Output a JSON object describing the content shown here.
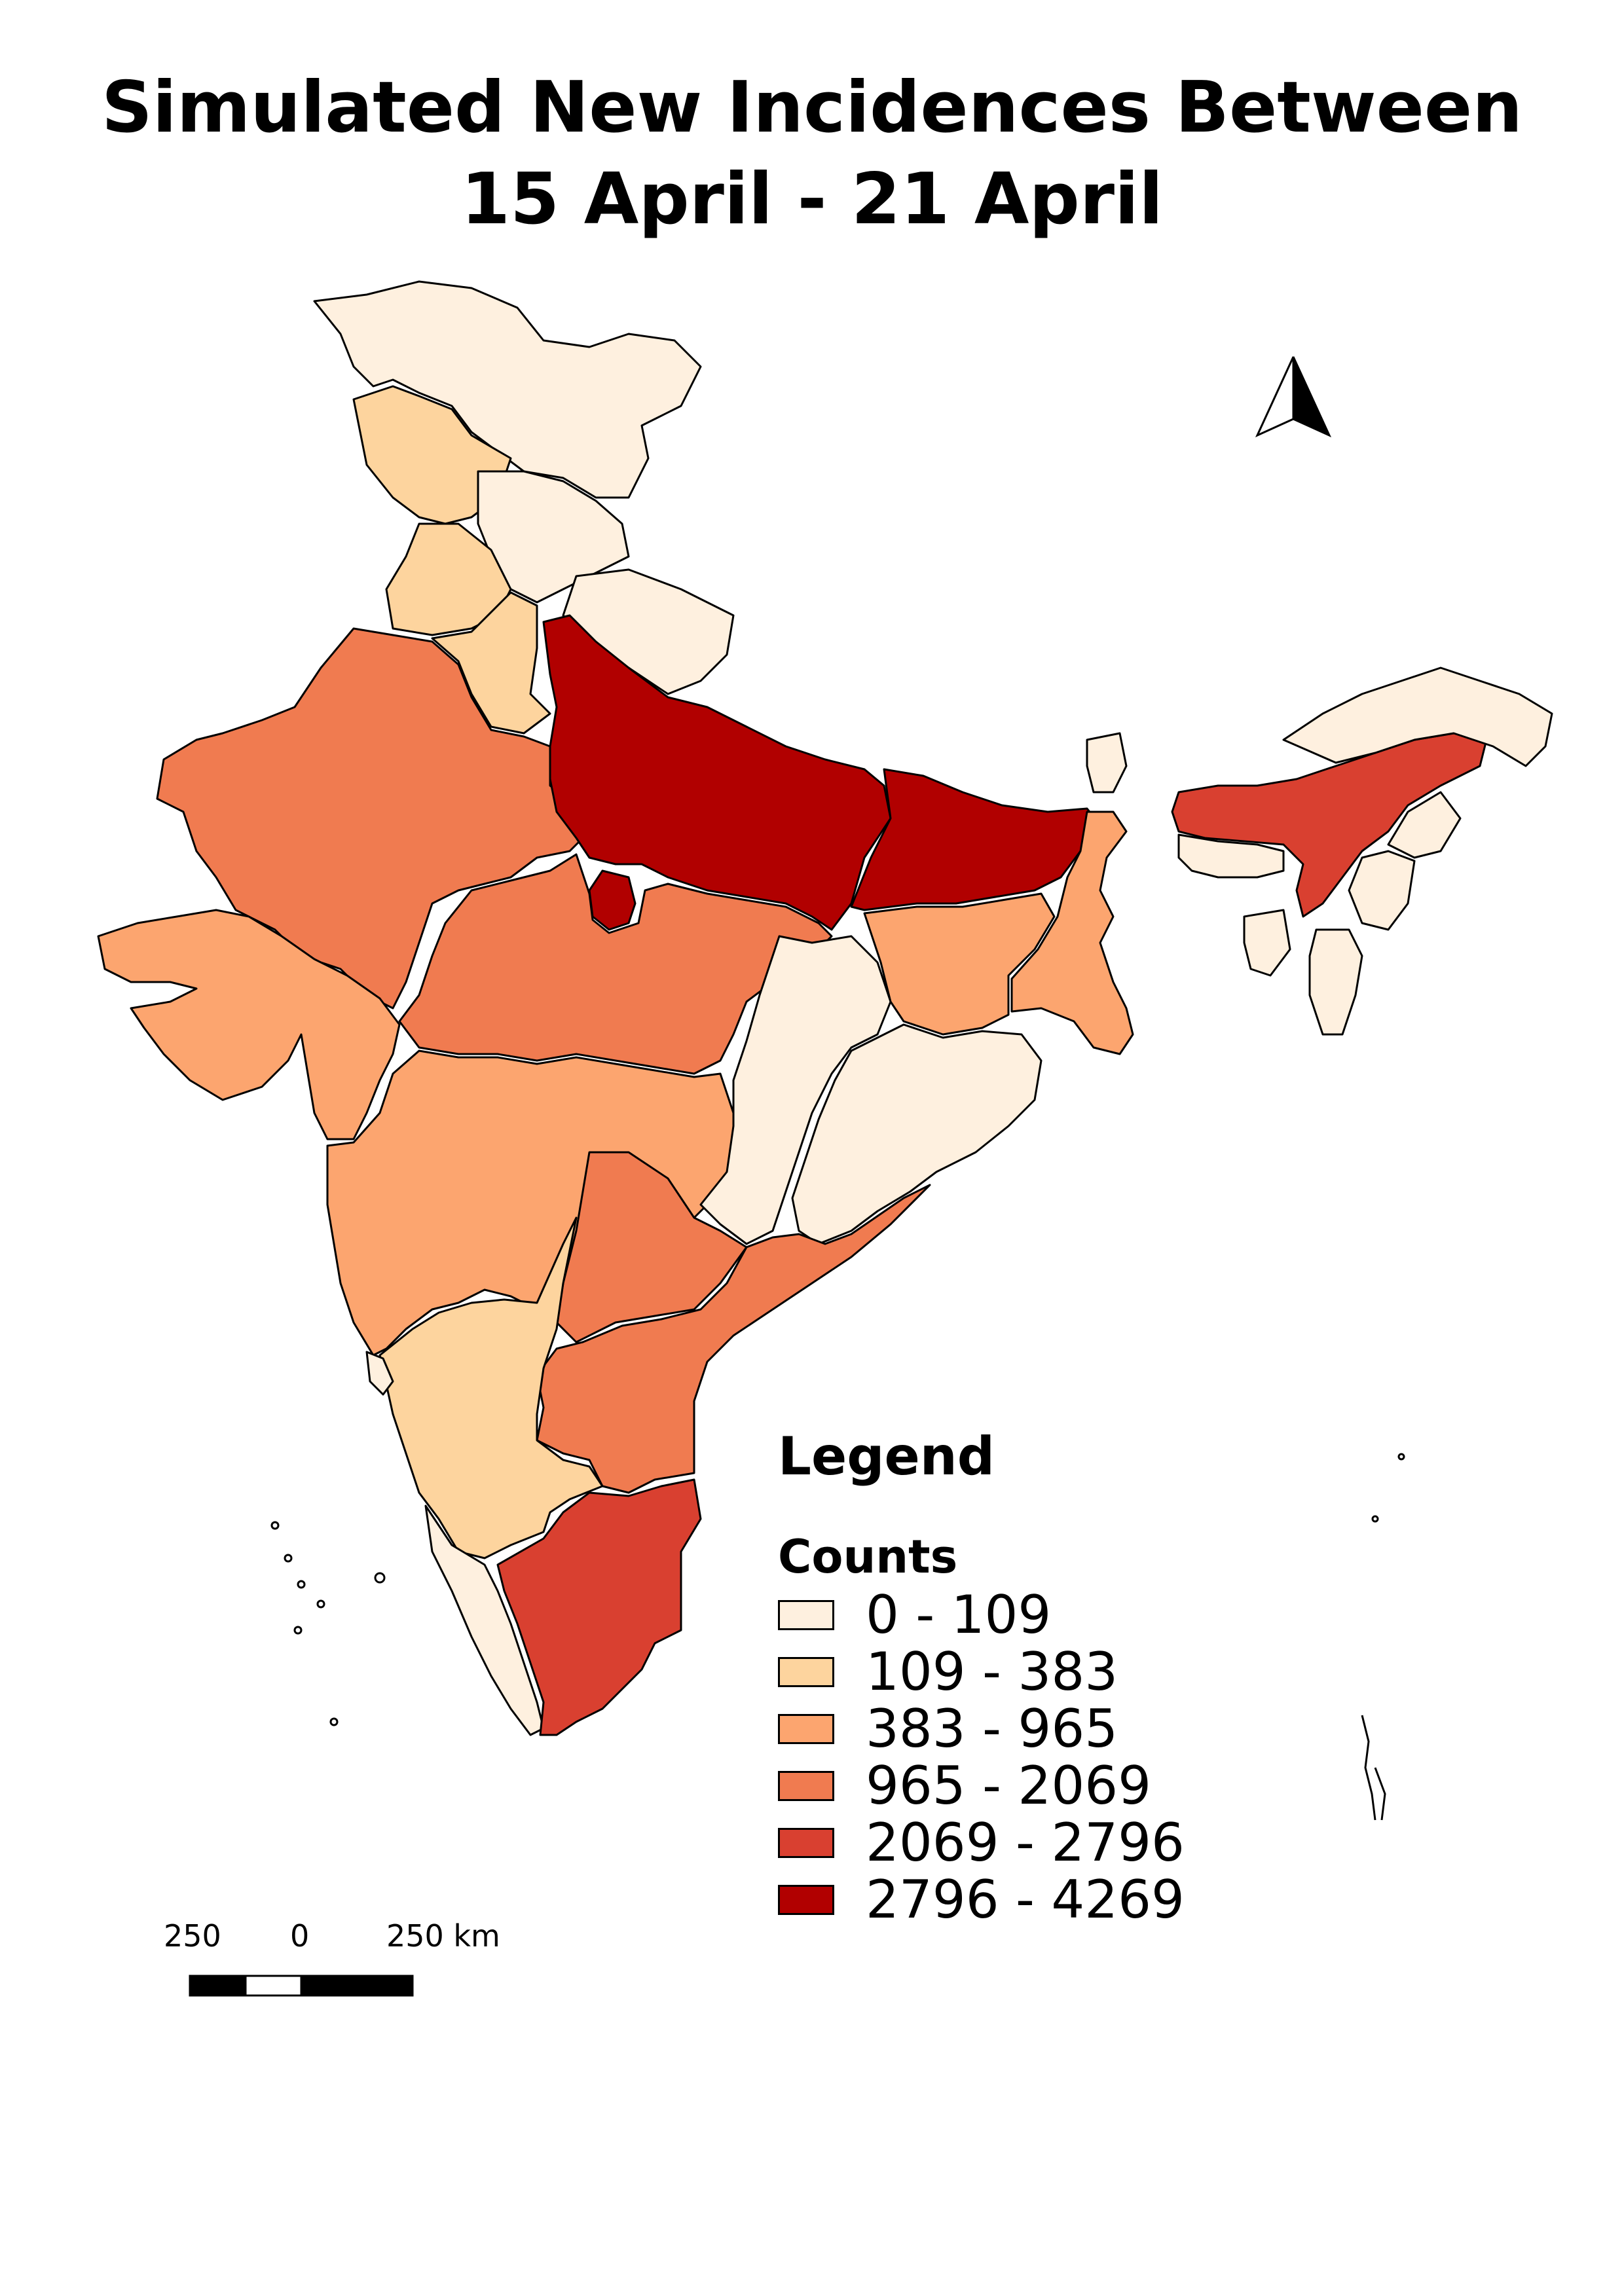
{
  "title": {
    "line1": "Simulated New Incidences Between",
    "line2": "15 April - 21 April"
  },
  "legend": {
    "title": "Legend",
    "subtitle": "Counts",
    "classes": [
      {
        "label": "0 - 109",
        "color": "#fef0df"
      },
      {
        "label": "109 - 383",
        "color": "#fdd49e"
      },
      {
        "label": "383 - 965",
        "color": "#fca56f"
      },
      {
        "label": "965 - 2069",
        "color": "#f07b50"
      },
      {
        "label": "2069 - 2796",
        "color": "#d94030"
      },
      {
        "label": "2796 - 4269",
        "color": "#b10000"
      }
    ]
  },
  "scale_bar": {
    "left_label": "250",
    "mid_label": "0",
    "right_label": "250 km"
  },
  "north_arrow": {
    "icon": "north-arrow-icon"
  }
}
